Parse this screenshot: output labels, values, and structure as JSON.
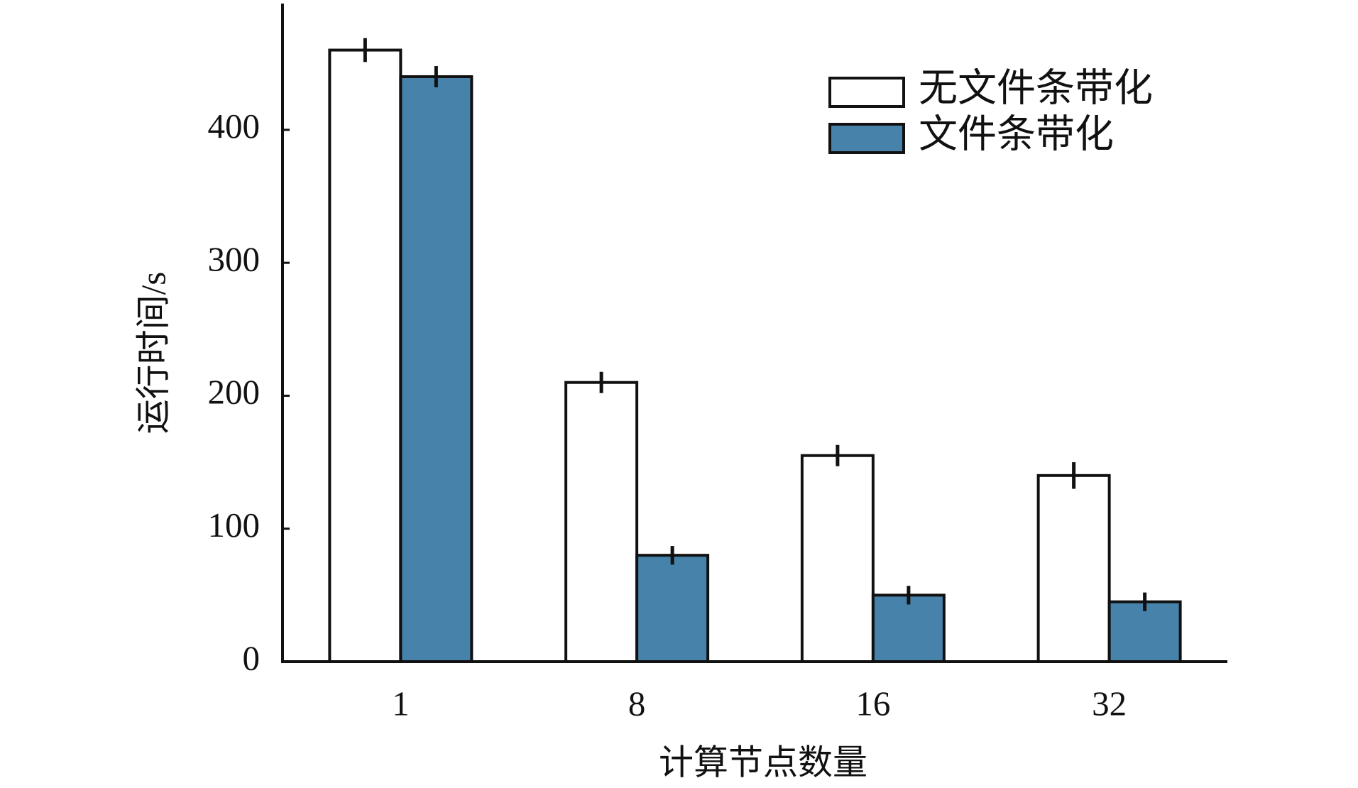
{
  "chart_data": {
    "type": "bar",
    "y_label": "运行时间/s",
    "x_label": "计算节点数量",
    "categories": [
      "1",
      "8",
      "16",
      "32"
    ],
    "series": [
      {
        "name": "无文件条带化",
        "color": "#ffffff",
        "values": [
          460,
          210,
          155,
          140
        ],
        "errors": [
          9,
          8,
          8,
          10
        ]
      },
      {
        "name": "文件条带化",
        "color": "#4682aa",
        "values": [
          440,
          80,
          50,
          45
        ],
        "errors": [
          8,
          7,
          7,
          7
        ]
      }
    ],
    "ylim": [
      0,
      495
    ],
    "yticks": [
      0,
      100,
      200,
      300,
      400
    ],
    "legend": "upper right",
    "grid": false
  }
}
